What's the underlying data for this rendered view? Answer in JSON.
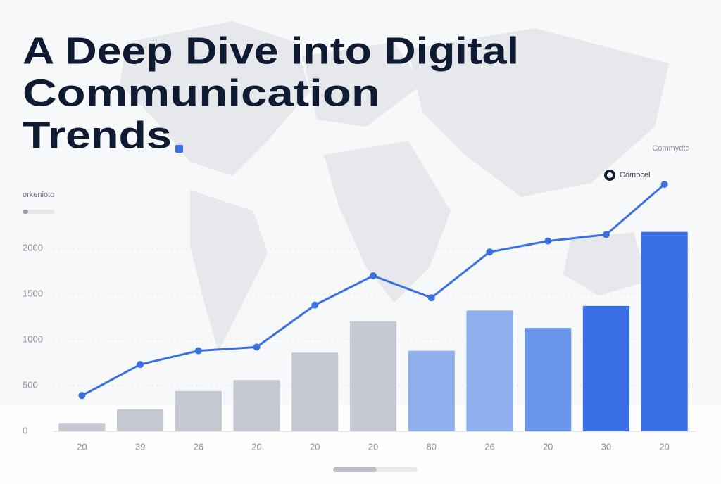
{
  "chart_data": {
    "type": "bar",
    "title": [
      "A Deep Dive into Digital",
      "Communication",
      "Trends"
    ],
    "subtitle": "Commydto",
    "y_label": "orkenioto",
    "categories": [
      "20",
      "39",
      "26",
      "20",
      "20",
      "20",
      "80",
      "26",
      "20",
      "30",
      "20"
    ],
    "values": [
      90,
      240,
      440,
      560,
      860,
      1200,
      880,
      1320,
      1130,
      1370,
      2180
    ],
    "colors": [
      "#c5c9d1",
      "#c5c9d1",
      "#c5c9d1",
      "#c5c9d1",
      "#c5c9d1",
      "#c5c9d1",
      "#8fb0ec",
      "#8fb0ec",
      "#6a96ea",
      "#3b6fe6",
      "#3b6fe6"
    ],
    "series": [
      {
        "name": "Combcel",
        "color": "#3a70e0",
        "values": [
          390,
          730,
          880,
          920,
          1380,
          1700,
          1460,
          1960,
          2080,
          2150,
          2700
        ]
      }
    ],
    "ylim": [
      0,
      2800
    ],
    "yticks": [
      0,
      500,
      1000,
      1500,
      2000
    ],
    "grid": true
  }
}
